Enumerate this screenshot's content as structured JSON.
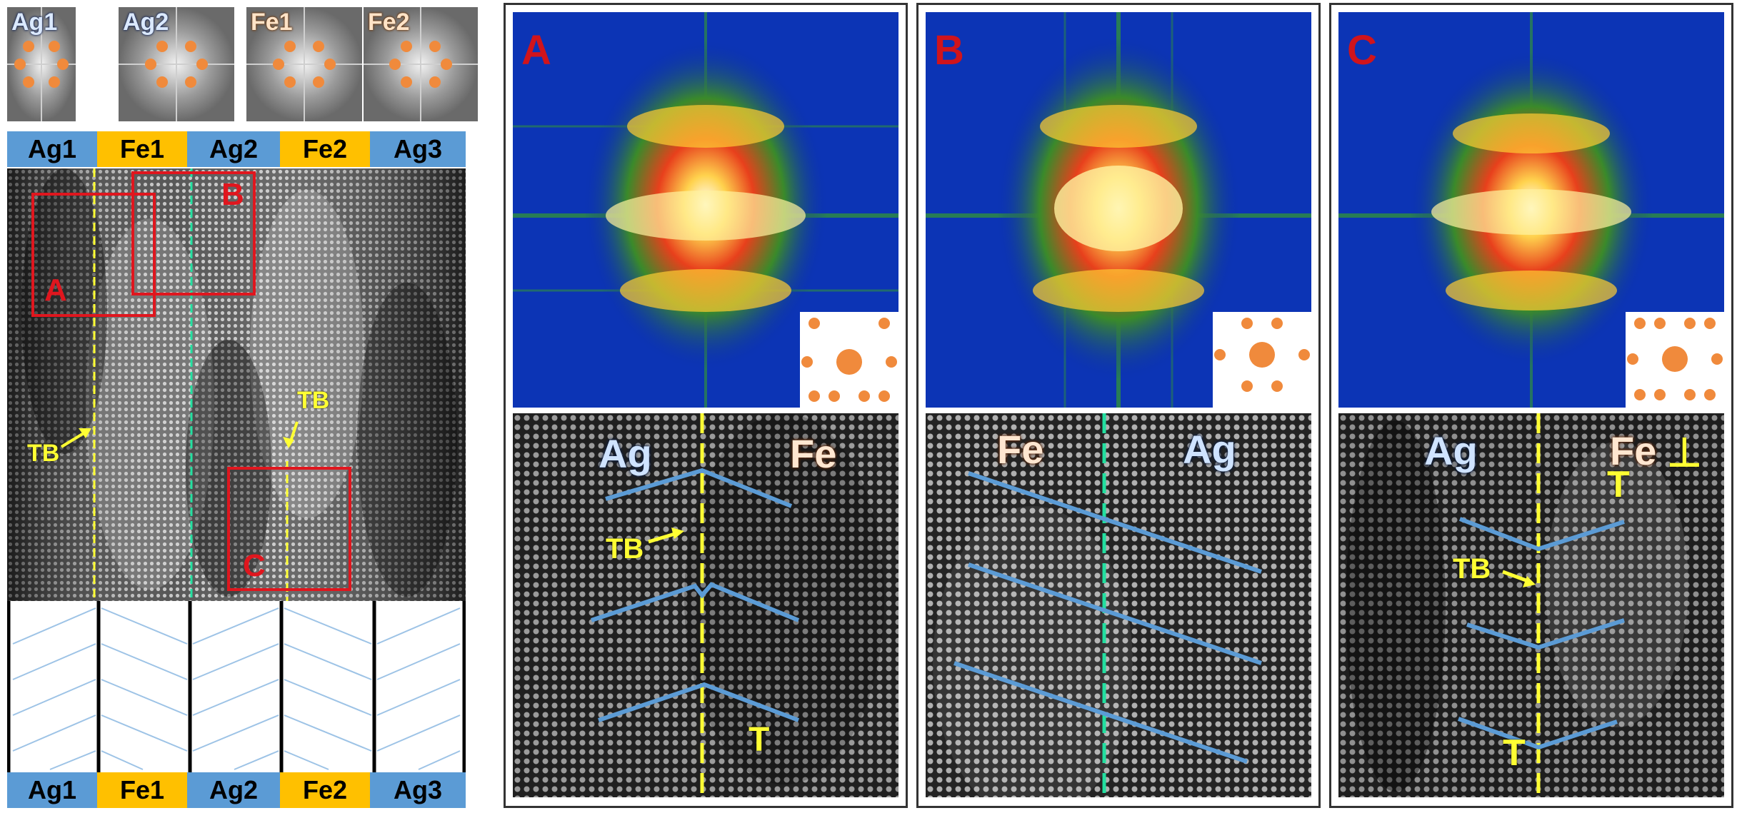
{
  "fft_thumbnails": [
    {
      "label": "Ag1",
      "kind": "ag"
    },
    {
      "label": "Ag2",
      "kind": "ag"
    },
    {
      "label": "Fe1",
      "kind": "fe"
    },
    {
      "label": "Fe2",
      "kind": "fe"
    }
  ],
  "layer_bar_top": [
    {
      "label": "Ag1",
      "kind": "ag"
    },
    {
      "label": "Fe1",
      "kind": "fe"
    },
    {
      "label": "Ag2",
      "kind": "ag"
    },
    {
      "label": "Fe2",
      "kind": "fe"
    },
    {
      "label": "Ag3",
      "kind": "ag"
    }
  ],
  "layer_bar_bottom": [
    {
      "label": "Ag1",
      "kind": "ag"
    },
    {
      "label": "Fe1",
      "kind": "fe"
    },
    {
      "label": "Ag2",
      "kind": "ag"
    },
    {
      "label": "Fe2",
      "kind": "fe"
    },
    {
      "label": "Ag3",
      "kind": "ag"
    }
  ],
  "overview": {
    "box_labels": {
      "a": "A",
      "b": "B",
      "c": "C"
    },
    "tb_label_left": "TB",
    "tb_label_right": "TB"
  },
  "panels": {
    "A": {
      "letter": "A",
      "left_layer": "Ag",
      "right_layer": "Fe",
      "tb_label": "TB",
      "dislocation": "T"
    },
    "B": {
      "letter": "B",
      "left_layer": "Fe",
      "right_layer": "Ag"
    },
    "C": {
      "letter": "C",
      "left_layer": "Ag",
      "right_layer": "Fe",
      "tb_label": "TB",
      "dislocation_top": "T",
      "dislocation_bottom": "T",
      "dislocation_corner": "⊥"
    }
  },
  "colors": {
    "ag_bar": "#5b9bd5",
    "fe_bar": "#ffc000",
    "box_red": "#e0161e",
    "tb_yellow": "#ffff33",
    "tb_green": "#22e0a0",
    "fringe_blue": "#5b9bd5",
    "fft_spot": "#f08a3c"
  }
}
